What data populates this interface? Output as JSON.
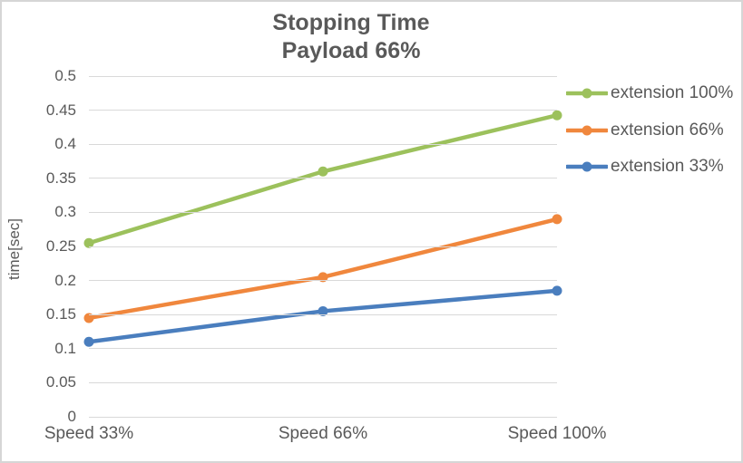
{
  "title": {
    "line1": "Stopping Time",
    "line2": "Payload 66%"
  },
  "chart_data": {
    "type": "line",
    "title": "Stopping Time — Payload 66%",
    "categories": [
      "Speed 33%",
      "Speed 66%",
      "Speed 100%"
    ],
    "series": [
      {
        "name": "extension 100%",
        "color": "#9cc15c",
        "values": [
          0.255,
          0.36,
          0.4425
        ]
      },
      {
        "name": "extension 66%",
        "color": "#f0873d",
        "values": [
          0.145,
          0.205,
          0.29
        ]
      },
      {
        "name": "extension 33%",
        "color": "#4a7ebe",
        "values": [
          0.11,
          0.155,
          0.185
        ]
      }
    ],
    "xlabel": "",
    "ylabel": "time[sec]",
    "ylim": [
      0,
      0.5
    ],
    "ytick_labels": [
      "0",
      "0.05",
      "0.1",
      "0.15",
      "0.2",
      "0.25",
      "0.3",
      "0.35",
      "0.4",
      "0.45",
      "0.5"
    ],
    "grid": true,
    "legend_position": "right",
    "marker": "circle"
  },
  "colors": {
    "text": "#595959",
    "gridline": "#d9d9d9",
    "border": "#d6d6d6",
    "background": "#ffffff"
  }
}
